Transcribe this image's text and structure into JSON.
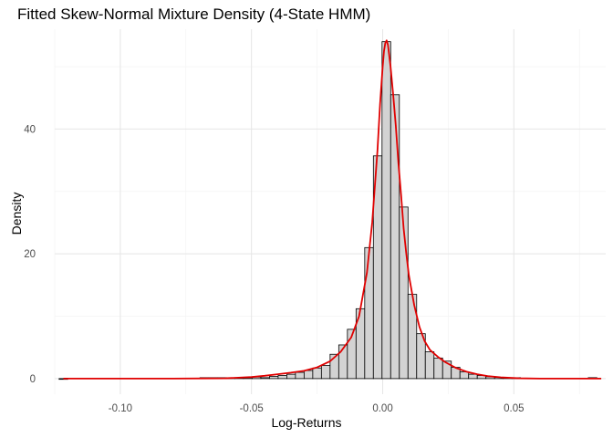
{
  "chart_data": {
    "type": "bar",
    "title": "Fitted Skew-Normal Mixture Density (4-State HMM)",
    "xlabel": "Log-Returns",
    "ylabel": "Density",
    "xlim": [
      -0.125,
      0.085
    ],
    "ylim": [
      -2.5,
      56
    ],
    "x_ticks": [
      -0.1,
      -0.05,
      0.0,
      0.05
    ],
    "x_tick_labels": [
      "-0.10",
      "-0.05",
      "0.00",
      "0.05"
    ],
    "y_ticks": [
      0,
      20,
      40
    ],
    "y_tick_labels": [
      "0",
      "20",
      "40"
    ],
    "grid": true,
    "histogram": {
      "bin_width": 0.0033,
      "fill": "#d3d3d3",
      "stroke": "#000000",
      "bins": [
        {
          "x": -0.1217,
          "density": 0
        },
        {
          "x": -0.068,
          "density": 0.15
        },
        {
          "x": -0.0646,
          "density": 0.15
        },
        {
          "x": -0.0613,
          "density": 0.15
        },
        {
          "x": -0.058,
          "density": 0.15
        },
        {
          "x": -0.0547,
          "density": 0.15
        },
        {
          "x": -0.0514,
          "density": 0.15
        },
        {
          "x": -0.0481,
          "density": 0.25
        },
        {
          "x": -0.0448,
          "density": 0.15
        },
        {
          "x": -0.0415,
          "density": 0.35
        },
        {
          "x": -0.0382,
          "density": 0.5
        },
        {
          "x": -0.0349,
          "density": 0.7
        },
        {
          "x": -0.0316,
          "density": 1.0
        },
        {
          "x": -0.0283,
          "density": 1.3
        },
        {
          "x": -0.025,
          "density": 1.7
        },
        {
          "x": -0.0217,
          "density": 2.1
        },
        {
          "x": -0.0184,
          "density": 3.9
        },
        {
          "x": -0.0151,
          "density": 5.4
        },
        {
          "x": -0.0118,
          "density": 7.9
        },
        {
          "x": -0.0085,
          "density": 11.2
        },
        {
          "x": -0.0052,
          "density": 21.0
        },
        {
          "x": -0.0019,
          "density": 35.7
        },
        {
          "x": 0.0014,
          "density": 54.0
        },
        {
          "x": 0.0047,
          "density": 45.5
        },
        {
          "x": 0.008,
          "density": 27.5
        },
        {
          "x": 0.0113,
          "density": 13.5
        },
        {
          "x": 0.0146,
          "density": 7.2
        },
        {
          "x": 0.0179,
          "density": 4.3
        },
        {
          "x": 0.0212,
          "density": 3.3
        },
        {
          "x": 0.0245,
          "density": 2.8
        },
        {
          "x": 0.0278,
          "density": 1.8
        },
        {
          "x": 0.0311,
          "density": 1.1
        },
        {
          "x": 0.0344,
          "density": 0.7
        },
        {
          "x": 0.0377,
          "density": 0.5
        },
        {
          "x": 0.041,
          "density": 0.3
        },
        {
          "x": 0.0443,
          "density": 0.2
        },
        {
          "x": 0.0476,
          "density": 0.15
        },
        {
          "x": 0.0509,
          "density": 0.15
        },
        {
          "x": 0.08,
          "density": 0.15
        }
      ]
    },
    "density_curve": {
      "color": "#e00000",
      "points": [
        [
          -0.1217,
          0.0
        ],
        [
          -0.08,
          0.0
        ],
        [
          -0.06,
          0.05
        ],
        [
          -0.05,
          0.25
        ],
        [
          -0.045,
          0.45
        ],
        [
          -0.04,
          0.7
        ],
        [
          -0.035,
          0.95
        ],
        [
          -0.03,
          1.25
        ],
        [
          -0.025,
          1.8
        ],
        [
          -0.02,
          2.8
        ],
        [
          -0.016,
          4.3
        ],
        [
          -0.012,
          6.6
        ],
        [
          -0.009,
          10.0
        ],
        [
          -0.006,
          17.0
        ],
        [
          -0.004,
          25.0
        ],
        [
          -0.002,
          36.5
        ],
        [
          -0.001,
          44.0
        ],
        [
          0.0,
          50.0
        ],
        [
          0.0005,
          52.5
        ],
        [
          0.001,
          53.8
        ],
        [
          0.0015,
          54.2
        ],
        [
          0.002,
          53.5
        ],
        [
          0.003,
          50.0
        ],
        [
          0.004,
          45.5
        ],
        [
          0.005,
          40.5
        ],
        [
          0.006,
          34.5
        ],
        [
          0.007,
          29.5
        ],
        [
          0.008,
          24.0
        ],
        [
          0.009,
          20.0
        ],
        [
          0.01,
          16.5
        ],
        [
          0.012,
          11.8
        ],
        [
          0.014,
          8.3
        ],
        [
          0.016,
          6.0
        ],
        [
          0.018,
          4.6
        ],
        [
          0.021,
          3.5
        ],
        [
          0.024,
          2.6
        ],
        [
          0.028,
          1.7
        ],
        [
          0.032,
          1.1
        ],
        [
          0.036,
          0.7
        ],
        [
          0.04,
          0.4
        ],
        [
          0.045,
          0.2
        ],
        [
          0.052,
          0.05
        ],
        [
          0.06,
          0.0
        ],
        [
          0.0833,
          0.0
        ]
      ]
    }
  }
}
